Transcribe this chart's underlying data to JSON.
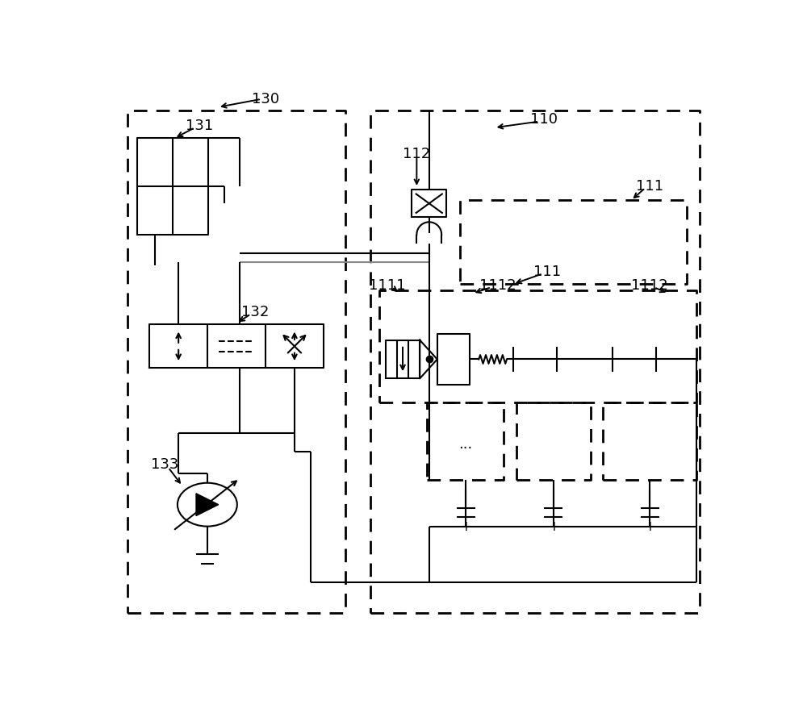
{
  "bg_color": "#ffffff",
  "lc": "#000000",
  "lw": 2.0,
  "lw_t": 1.5,
  "fig_w": 10.0,
  "fig_h": 8.89
}
